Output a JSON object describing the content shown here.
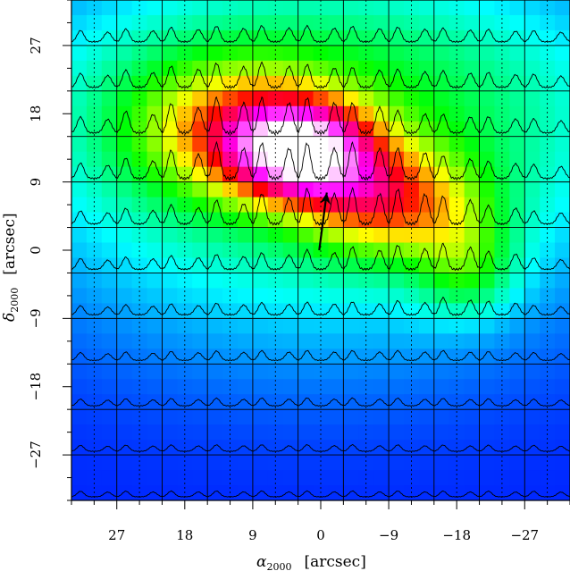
{
  "chart_data": {
    "type": "heatmap",
    "title": "",
    "x_axis": {
      "label_main": "α",
      "label_sub": "2000",
      "label_unit": "[arcsec]",
      "ticks": [
        27,
        18,
        9,
        0,
        -9,
        -18,
        -27
      ],
      "tick_labels": [
        "27",
        "18",
        "9",
        "0",
        "−9",
        "−18",
        "−27"
      ],
      "range": [
        33,
        -33
      ],
      "direction": "decreasing-right"
    },
    "y_axis": {
      "label_main": "δ",
      "label_sub": "2000",
      "label_unit": "[arcsec]",
      "ticks": [
        27,
        18,
        9,
        0,
        -9,
        -18,
        -27
      ],
      "tick_labels": [
        "27",
        "18",
        "9",
        "0",
        "−9",
        "−18",
        "−27"
      ],
      "range": [
        -33,
        33
      ]
    },
    "colormap": [
      "#0000ff",
      "#00ffff",
      "#00ff00",
      "#ffff00",
      "#ff0000",
      "#ff00ff",
      "#ffffff"
    ],
    "intensity_components": [
      {
        "ra": 2.5,
        "dec": 13,
        "sig_ra": 6.5,
        "sig_dec": 4.5,
        "amp": 0.62
      },
      {
        "ra": -8,
        "dec": 6.5,
        "sig_ra": 7,
        "sig_dec": 5,
        "amp": 0.36
      },
      {
        "ra": 12,
        "dec": 16,
        "sig_ra": 9,
        "sig_dec": 6,
        "amp": 0.3
      },
      {
        "ra": -18,
        "dec": 2,
        "sig_ra": 5,
        "sig_dec": 6,
        "amp": 0.15
      },
      {
        "ra": -20,
        "dec": -3,
        "sig_ra": 4,
        "sig_dec": 4,
        "amp": 0.1
      },
      {
        "ra": 0,
        "dec": 10,
        "sig_ra": 28,
        "sig_dec": 17,
        "amp": 0.22
      },
      {
        "ra": 0,
        "dec": 22,
        "sig_ra": 30,
        "sig_dec": 12,
        "amp": 0.14
      }
    ],
    "spectra_grid": {
      "ra_centers": [
        30,
        24,
        18,
        12,
        6,
        0,
        -6,
        -12,
        -18,
        -24,
        -30
      ],
      "dec_centers": [
        30,
        24,
        18,
        12,
        6,
        0,
        -6,
        -12,
        -18,
        -24,
        -30
      ],
      "line_offsets_arcsec": [
        -1.8,
        1.8
      ],
      "line_width_arcsec": 0.45,
      "max_amplitude_arcsec": 4.6
    },
    "dashed_vertical_lines_ra": [
      30,
      24,
      18,
      12,
      6,
      0,
      -6,
      -12,
      -18,
      -24,
      -30
    ],
    "arrow": {
      "from": [
        0.2,
        0
      ],
      "to": [
        -0.8,
        7.6
      ]
    },
    "grid": true,
    "legend": "none"
  }
}
